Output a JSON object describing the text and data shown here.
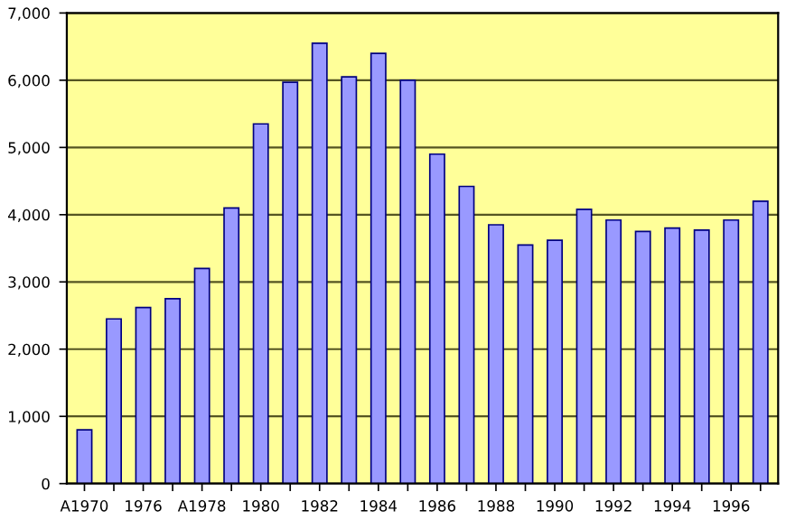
{
  "chart_data": {
    "type": "bar",
    "categories": [
      "A1970",
      null,
      "1976",
      null,
      "A1978",
      null,
      "1980",
      null,
      "1982",
      null,
      "1984",
      null,
      "1986",
      null,
      "1988",
      null,
      "1990",
      null,
      "1992",
      null,
      "1994",
      null,
      "1996",
      null
    ],
    "values": [
      800,
      2450,
      2620,
      2750,
      3200,
      4100,
      5350,
      5970,
      6550,
      6050,
      6400,
      6000,
      4900,
      4420,
      3850,
      3550,
      3620,
      4080,
      3920,
      3750,
      3800,
      3770,
      3920,
      4200
    ],
    "color": "#9999ff",
    "ylim": [
      0,
      7000
    ],
    "yticks": [
      {
        "value": 0,
        "label": "0"
      },
      {
        "value": 1000,
        "label": "1,000"
      },
      {
        "value": 2000,
        "label": "2,000"
      },
      {
        "value": 3000,
        "label": "3,000"
      },
      {
        "value": 4000,
        "label": "4,000"
      },
      {
        "value": 5000,
        "label": "5,000"
      },
      {
        "value": 6000,
        "label": "6,000"
      },
      {
        "value": 7000,
        "label": "7,000"
      }
    ],
    "grid": "y"
  }
}
